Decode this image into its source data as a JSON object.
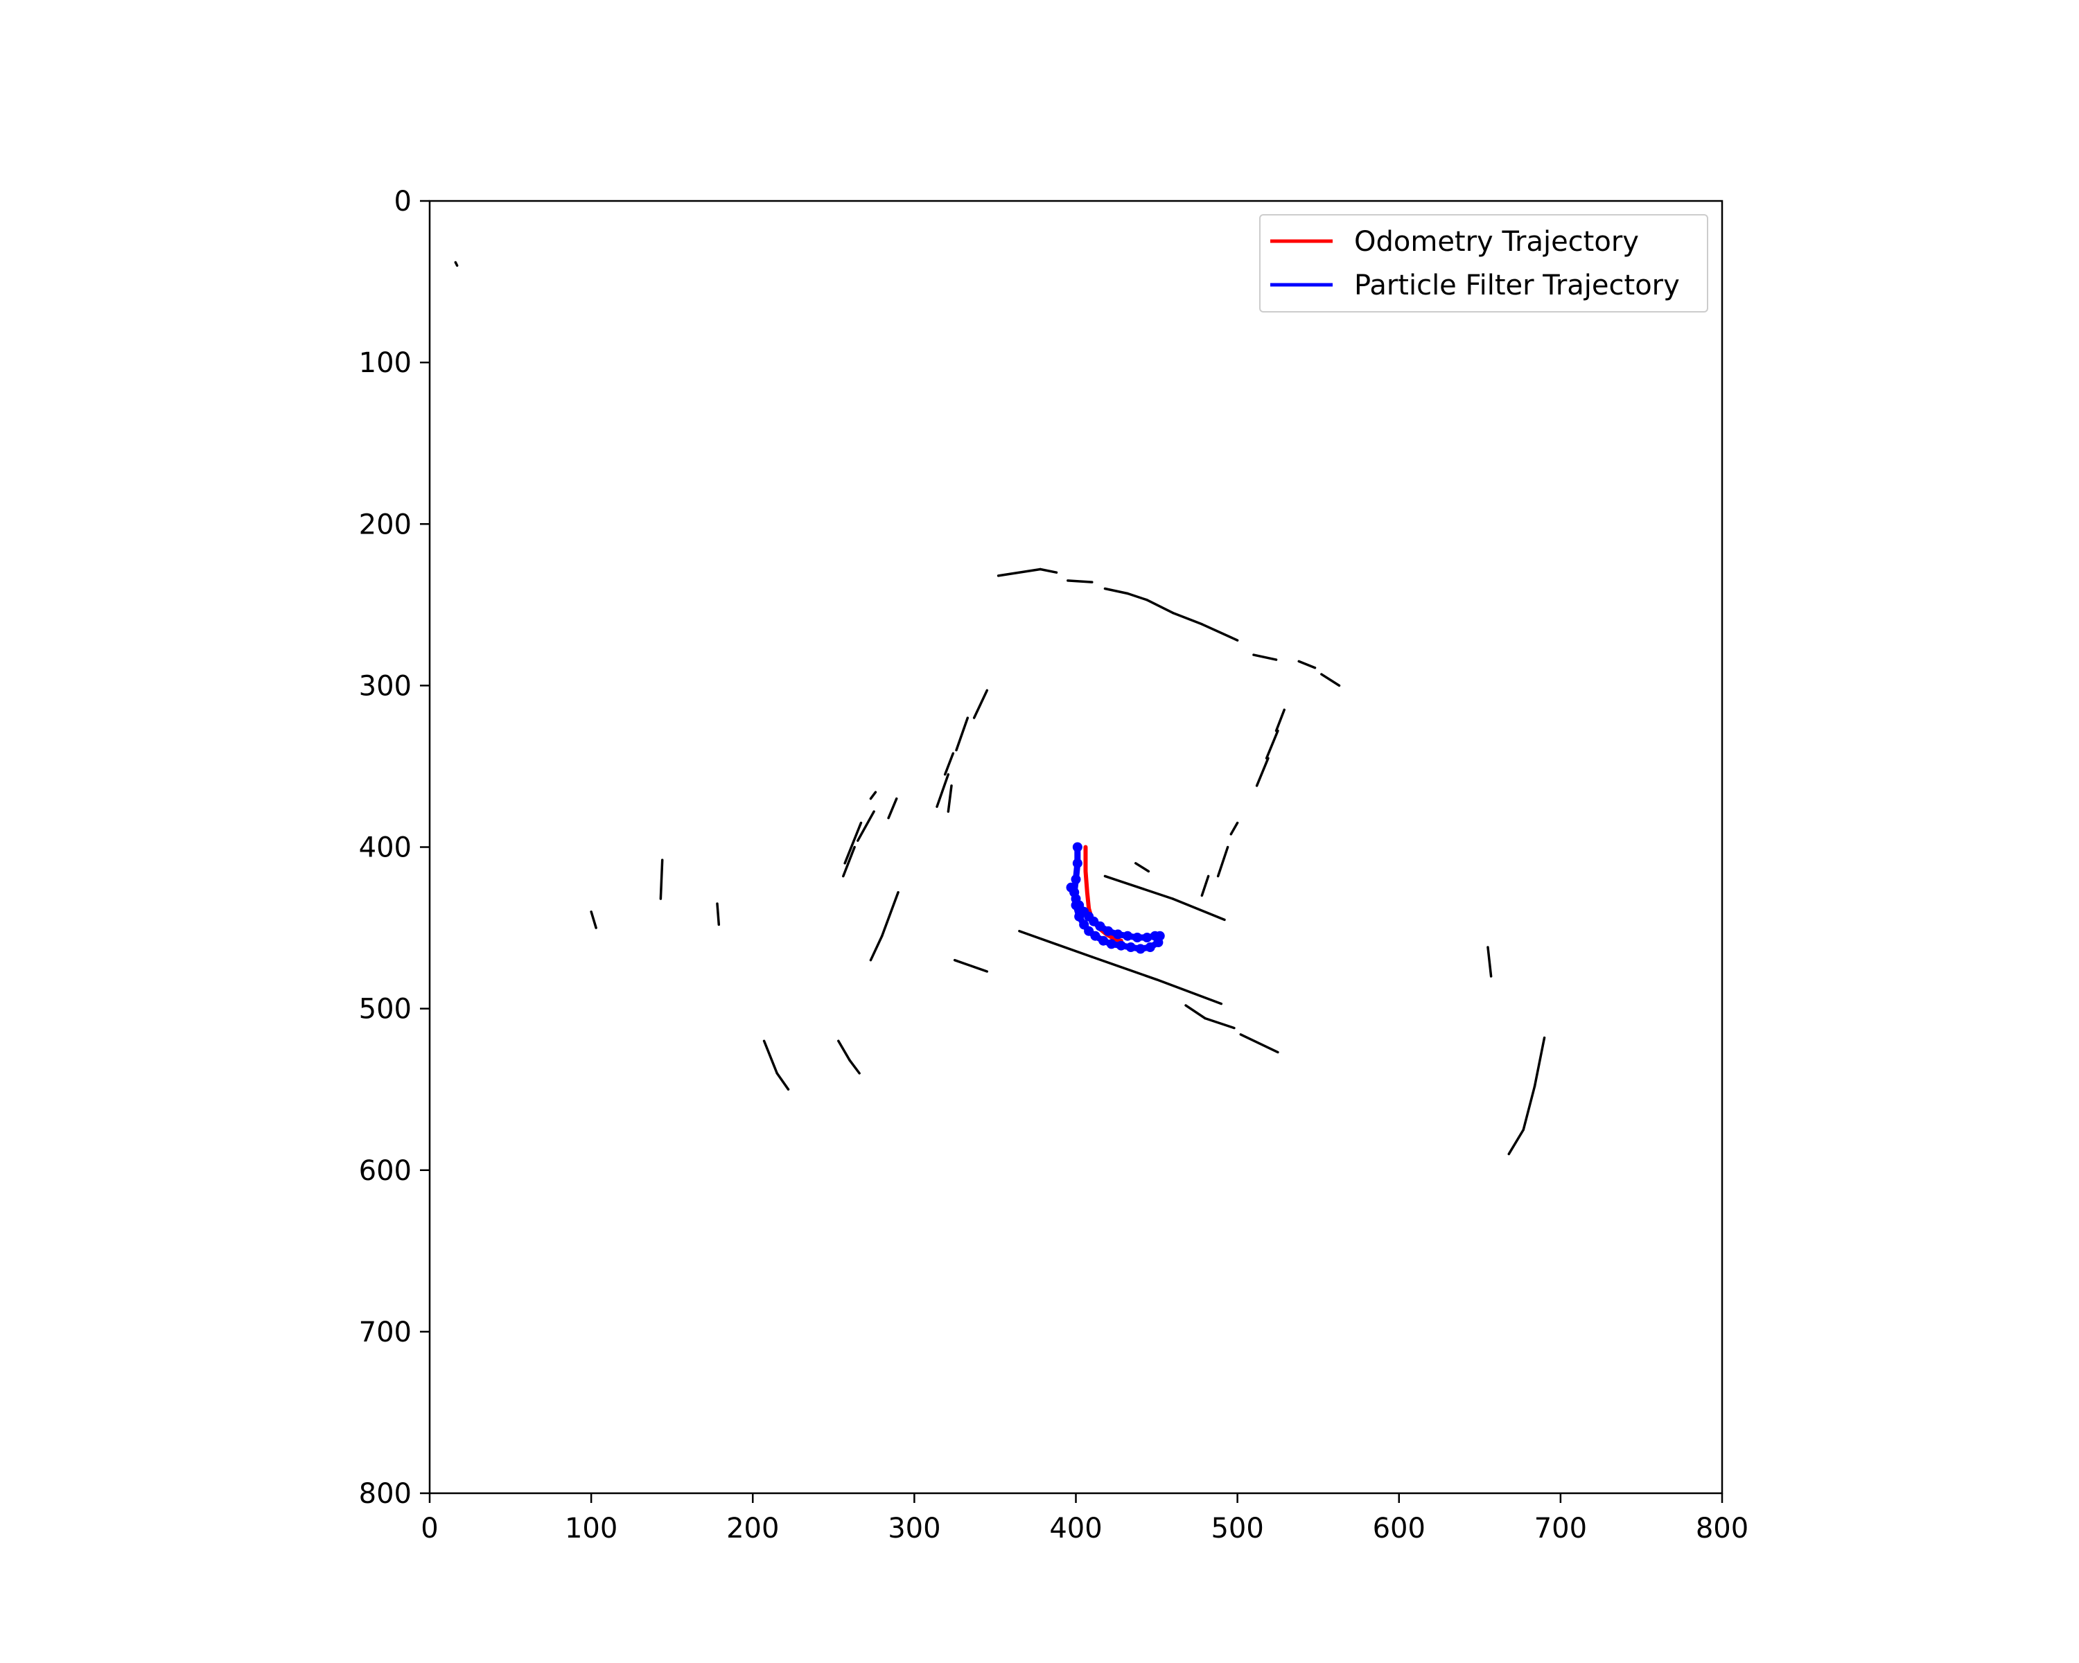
{
  "chart_data": {
    "type": "line",
    "title": "",
    "xlabel": "",
    "ylabel": "",
    "xlim": [
      0,
      800
    ],
    "ylim": [
      800,
      0
    ],
    "y_axis_inverted": true,
    "x_ticks": [
      0,
      100,
      200,
      300,
      400,
      500,
      600,
      700,
      800
    ],
    "y_ticks": [
      0,
      100,
      200,
      300,
      400,
      500,
      600,
      700,
      800
    ],
    "grid": false,
    "legend_position": "top-right",
    "background": "occupancy map (black obstacle points on white)",
    "series": [
      {
        "name": "Odometry Trajectory",
        "color": "#ff0000",
        "x": [
          406,
          406,
          407,
          408,
          410,
          414,
          419,
          424,
          428
        ],
        "y": [
          400,
          415,
          428,
          438,
          445,
          450,
          454,
          457,
          458
        ]
      },
      {
        "name": "Particle Filter Trajectory",
        "color": "#0000ff",
        "x": [
          401,
          401,
          400,
          399,
          400,
          402,
          405,
          408,
          412,
          417,
          422,
          428,
          434,
          440,
          446,
          451,
          452,
          449,
          444,
          438,
          432,
          426,
          420,
          415,
          411,
          408,
          405,
          402,
          400,
          399,
          397
        ],
        "y": [
          400,
          410,
          420,
          428,
          436,
          443,
          448,
          452,
          455,
          458,
          460,
          461,
          462,
          463,
          462,
          459,
          455,
          455,
          456,
          456,
          455,
          454,
          452,
          449,
          446,
          443,
          440,
          436,
          432,
          428,
          425
        ]
      }
    ]
  },
  "map": {
    "obstacle_color": "#000000",
    "segments": [
      [
        352,
        232,
        378,
        228
      ],
      [
        378,
        228,
        388,
        230
      ],
      [
        395,
        235,
        410,
        236
      ],
      [
        418,
        240,
        432,
        243
      ],
      [
        432,
        243,
        444,
        247
      ],
      [
        444,
        247,
        460,
        255
      ],
      [
        460,
        255,
        478,
        262
      ],
      [
        478,
        262,
        500,
        272
      ],
      [
        510,
        281,
        524,
        284
      ],
      [
        538,
        285,
        548,
        289
      ],
      [
        552,
        293,
        563,
        300
      ],
      [
        345,
        303,
        337,
        320
      ],
      [
        333,
        320,
        326,
        340
      ],
      [
        324,
        342,
        319,
        355
      ],
      [
        321,
        355,
        314,
        375
      ],
      [
        323,
        362,
        321,
        378
      ],
      [
        289,
        370,
        284,
        382
      ],
      [
        275,
        378,
        265,
        396
      ],
      [
        267,
        385,
        257,
        410
      ],
      [
        263,
        400,
        256,
        418
      ],
      [
        276,
        366,
        273,
        370
      ],
      [
        529,
        315,
        524,
        328
      ],
      [
        525,
        328,
        518,
        345
      ],
      [
        519,
        345,
        512,
        362
      ],
      [
        500,
        385,
        496,
        392
      ],
      [
        494,
        400,
        488,
        418
      ],
      [
        482,
        418,
        478,
        430
      ],
      [
        418,
        418,
        460,
        432
      ],
      [
        460,
        432,
        492,
        445
      ],
      [
        437,
        410,
        445,
        415
      ],
      [
        365,
        452,
        410,
        468
      ],
      [
        410,
        468,
        450,
        482
      ],
      [
        450,
        482,
        490,
        497
      ],
      [
        325,
        470,
        345,
        477
      ],
      [
        290,
        428,
        280,
        455
      ],
      [
        280,
        455,
        273,
        470
      ],
      [
        468,
        498,
        480,
        506
      ],
      [
        480,
        506,
        498,
        512
      ],
      [
        502,
        516,
        525,
        527
      ],
      [
        144,
        408,
        143,
        432
      ],
      [
        178,
        435,
        179,
        448
      ],
      [
        100,
        440,
        103,
        450
      ],
      [
        207,
        520,
        215,
        540
      ],
      [
        215,
        540,
        222,
        550
      ],
      [
        253,
        520,
        260,
        532
      ],
      [
        260,
        532,
        266,
        540
      ],
      [
        655,
        462,
        657,
        480
      ],
      [
        690,
        518,
        684,
        548
      ],
      [
        684,
        548,
        677,
        575
      ],
      [
        677,
        575,
        668,
        590
      ],
      [
        16,
        38,
        17,
        40
      ]
    ]
  },
  "legend": {
    "items": [
      {
        "label": "Odometry Trajectory",
        "color": "#ff0000"
      },
      {
        "label": "Particle Filter Trajectory",
        "color": "#0000ff"
      }
    ]
  }
}
